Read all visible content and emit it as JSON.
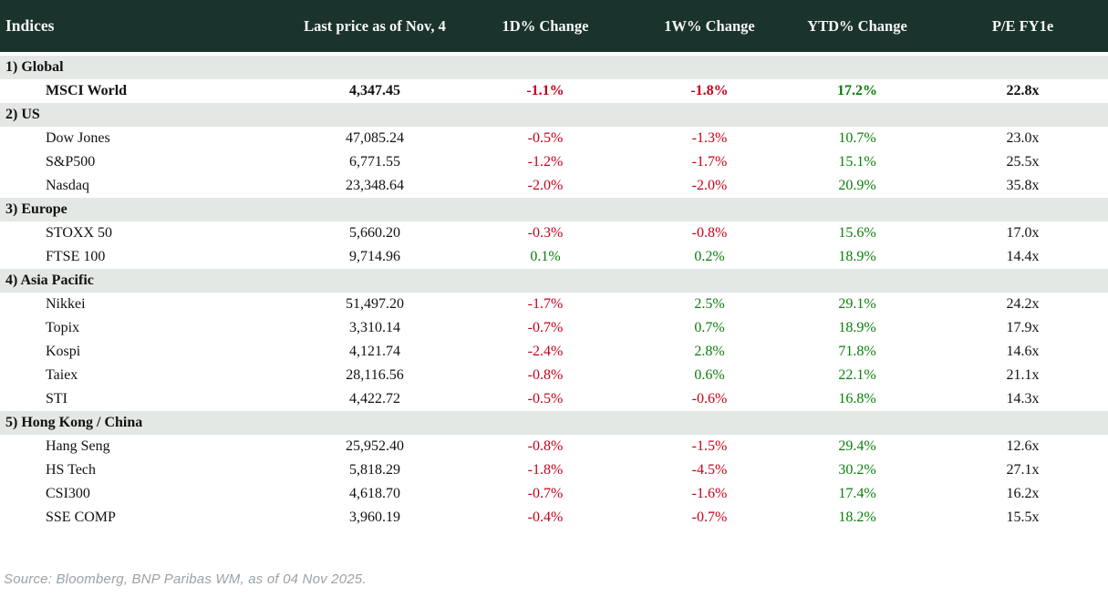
{
  "header": {
    "columns": [
      "Indices",
      "Last price as of Nov, 4",
      "1D% Change",
      "1W% Change",
      "YTD% Change",
      "P/E FY1e"
    ]
  },
  "sections": [
    {
      "label": "1) Global",
      "rows": [
        {
          "name": "MSCI World",
          "price": "4,347.45",
          "d1": "-1.1%",
          "w1": "-1.8%",
          "ytd": "17.2%",
          "pe": "22.8x",
          "emphasis": true
        }
      ]
    },
    {
      "label": "2) US",
      "rows": [
        {
          "name": "Dow Jones",
          "price": "47,085.24",
          "d1": "-0.5%",
          "w1": "-1.3%",
          "ytd": "10.7%",
          "pe": "23.0x"
        },
        {
          "name": "S&P500",
          "price": "6,771.55",
          "d1": "-1.2%",
          "w1": "-1.7%",
          "ytd": "15.1%",
          "pe": "25.5x"
        },
        {
          "name": "Nasdaq",
          "price": "23,348.64",
          "d1": "-2.0%",
          "w1": "-2.0%",
          "ytd": "20.9%",
          "pe": "35.8x"
        }
      ]
    },
    {
      "label": "3) Europe",
      "rows": [
        {
          "name": "STOXX 50",
          "price": "5,660.20",
          "d1": "-0.3%",
          "w1": "-0.8%",
          "ytd": "15.6%",
          "pe": "17.0x"
        },
        {
          "name": "FTSE 100",
          "price": "9,714.96",
          "d1": "0.1%",
          "w1": "0.2%",
          "ytd": "18.9%",
          "pe": "14.4x"
        }
      ]
    },
    {
      "label": "4) Asia Pacific",
      "rows": [
        {
          "name": "Nikkei",
          "price": "51,497.20",
          "d1": "-1.7%",
          "w1": "2.5%",
          "ytd": "29.1%",
          "pe": "24.2x"
        },
        {
          "name": "Topix",
          "price": "3,310.14",
          "d1": "-0.7%",
          "w1": "0.7%",
          "ytd": "18.9%",
          "pe": "17.9x"
        },
        {
          "name": "Kospi",
          "price": "4,121.74",
          "d1": "-2.4%",
          "w1": "2.8%",
          "ytd": "71.8%",
          "pe": "14.6x"
        },
        {
          "name": "Taiex",
          "price": "28,116.56",
          "d1": "-0.8%",
          "w1": "0.6%",
          "ytd": "22.1%",
          "pe": "21.1x"
        },
        {
          "name": "STI",
          "price": "4,422.72",
          "d1": "-0.5%",
          "w1": "-0.6%",
          "ytd": "16.8%",
          "pe": "14.3x"
        }
      ]
    },
    {
      "label": "5) Hong Kong / China",
      "rows": [
        {
          "name": "Hang Seng",
          "price": "25,952.40",
          "d1": "-0.8%",
          "w1": "-1.5%",
          "ytd": "29.4%",
          "pe": "12.6x"
        },
        {
          "name": "HS Tech",
          "price": "5,818.29",
          "d1": "-1.8%",
          "w1": "-4.5%",
          "ytd": "30.2%",
          "pe": "27.1x"
        },
        {
          "name": "CSI300",
          "price": "4,618.70",
          "d1": "-0.7%",
          "w1": "-1.6%",
          "ytd": "17.4%",
          "pe": "16.2x"
        },
        {
          "name": "SSE COMP",
          "price": "3,960.19",
          "d1": "-0.4%",
          "w1": "-0.7%",
          "ytd": "18.2%",
          "pe": "15.5x"
        }
      ]
    }
  ],
  "footer": {
    "source": "Source: Bloomberg, BNP Paribas WM, as of 04 Nov 2025."
  },
  "colors": {
    "header_bg": "#1a332c",
    "header_text": "#f7f8f6",
    "section_bg": "#e3e8e4",
    "negative": "#c40019",
    "positive": "#0a7e0a",
    "body_text": "#111111",
    "source_text": "#98a2aa"
  }
}
